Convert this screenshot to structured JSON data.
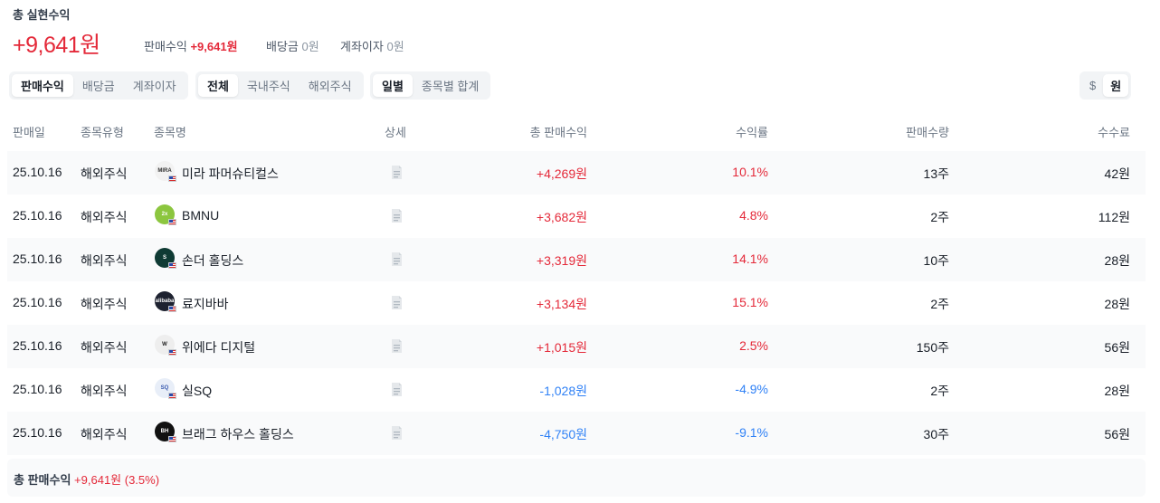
{
  "header": {
    "title": "총 실현수익",
    "total": "+9,641원",
    "summary": [
      {
        "label": "판매수익",
        "value": "+9,641원",
        "tone": "red"
      },
      {
        "label": "배당금",
        "value": "0원",
        "tone": "gray"
      },
      {
        "label": "계좌이자",
        "value": "0원",
        "tone": "gray"
      }
    ]
  },
  "filters": {
    "type_tabs": [
      "판매수익",
      "배당금",
      "계좌이자"
    ],
    "type_active": "판매수익",
    "market_tabs": [
      "전체",
      "국내주식",
      "해외주식"
    ],
    "market_active": "전체",
    "group_tabs": [
      "일별",
      "종목별 합계"
    ],
    "group_active": "일별",
    "currency_tabs": [
      "$",
      "원"
    ],
    "currency_active": "원"
  },
  "table": {
    "columns": {
      "date": "판매일",
      "type": "종목유형",
      "name": "종목명",
      "detail": "상세",
      "profit": "총 판매수익",
      "rate": "수익률",
      "qty": "판매수량",
      "fee": "수수료"
    },
    "rows": [
      {
        "date": "25.10.16",
        "type": "해외주식",
        "name": "미라 파머슈티컬스",
        "logo_text": "MIRA",
        "logo_bg": "#f2f2f2",
        "logo_fg": "#333333",
        "profit": "+4,269원",
        "rate": "10.1%",
        "qty": "13주",
        "fee": "42원",
        "tone": "pos"
      },
      {
        "date": "25.10.16",
        "type": "해외주식",
        "name": "BMNU",
        "logo_text": "2x",
        "logo_bg": "#8cc63f",
        "logo_fg": "#ffffff",
        "profit": "+3,682원",
        "rate": "4.8%",
        "qty": "2주",
        "fee": "112원",
        "tone": "pos"
      },
      {
        "date": "25.10.16",
        "type": "해외주식",
        "name": "손더 홀딩스",
        "logo_text": "S",
        "logo_bg": "#0f3b34",
        "logo_fg": "#ffffff",
        "profit": "+3,319원",
        "rate": "14.1%",
        "qty": "10주",
        "fee": "28원",
        "tone": "pos"
      },
      {
        "date": "25.10.16",
        "type": "해외주식",
        "name": "료지바바",
        "logo_text": "alibaba",
        "logo_bg": "#1e2230",
        "logo_fg": "#ffffff",
        "profit": "+3,134원",
        "rate": "15.1%",
        "qty": "2주",
        "fee": "28원",
        "tone": "pos"
      },
      {
        "date": "25.10.16",
        "type": "해외주식",
        "name": "위에다 디지털",
        "logo_text": "W",
        "logo_bg": "#eeeeee",
        "logo_fg": "#222222",
        "profit": "+1,015원",
        "rate": "2.5%",
        "qty": "150주",
        "fee": "56원",
        "tone": "pos"
      },
      {
        "date": "25.10.16",
        "type": "해외주식",
        "name": "실SQ",
        "logo_text": "SQ",
        "logo_bg": "#e8eef8",
        "logo_fg": "#3a5bb0",
        "profit": "-1,028원",
        "rate": "-4.9%",
        "qty": "2주",
        "fee": "28원",
        "tone": "neg"
      },
      {
        "date": "25.10.16",
        "type": "해외주식",
        "name": "브래그 하우스 홀딩스",
        "logo_text": "BH",
        "logo_bg": "#111111",
        "logo_fg": "#ffffff",
        "profit": "-4,750원",
        "rate": "-9.1%",
        "qty": "30주",
        "fee": "56원",
        "tone": "neg"
      }
    ]
  },
  "footer": {
    "label": "총 판매수익",
    "value": "+9,641원 (3.5%)"
  },
  "colors": {
    "positive": "#e42939",
    "negative": "#3182f6",
    "muted": "#8b95a1"
  }
}
